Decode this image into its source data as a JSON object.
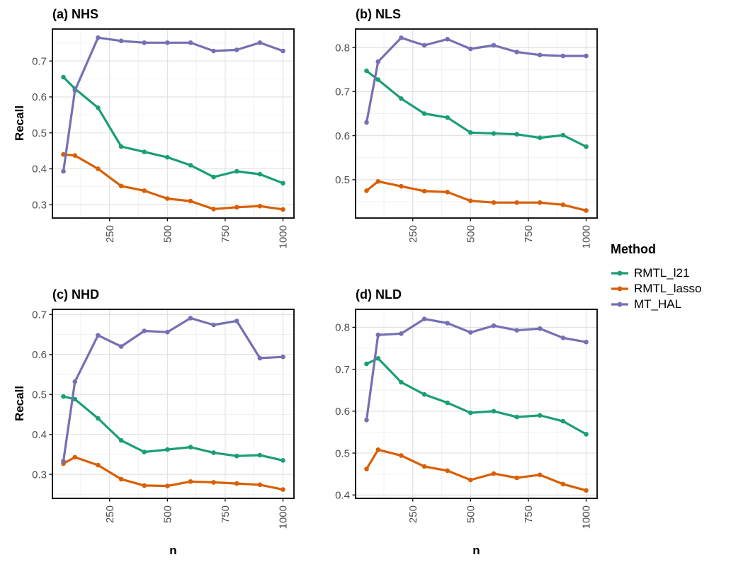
{
  "figure": {
    "y_axis_label": "Recall",
    "x_axis_label": "n",
    "tick_label_color": "#4D4D4D",
    "panel_border_color": "#1A1A1A",
    "grid_major_color": "#E2E2E2",
    "grid_minor_color": "#F0F0F0",
    "background_color": "#FFFFFF"
  },
  "legend": {
    "title": "Method",
    "items": [
      {
        "label": "RMTL_l21",
        "color": "#1B9E77"
      },
      {
        "label": "RMTL_lasso",
        "color": "#D95F02"
      },
      {
        "label": "MT_HAL",
        "color": "#7570B3"
      }
    ]
  },
  "chart_data": [
    {
      "type": "line",
      "title": "(a) NHS",
      "xlabel": "n",
      "ylabel": "Recall",
      "x": [
        50,
        100,
        200,
        300,
        400,
        500,
        600,
        700,
        800,
        900,
        1000
      ],
      "xticks": [
        250,
        500,
        750,
        1000
      ],
      "xlim": [
        2.5,
        1047.5
      ],
      "yticks": [
        0.3,
        0.4,
        0.5,
        0.6,
        0.7
      ],
      "ylim": [
        0.263,
        0.789
      ],
      "series": [
        {
          "name": "RMTL_l21",
          "color": "#1B9E77",
          "values": [
            0.655,
            0.623,
            0.57,
            0.462,
            0.447,
            0.432,
            0.41,
            0.377,
            0.393,
            0.385,
            0.36
          ]
        },
        {
          "name": "RMTL_lasso",
          "color": "#D95F02",
          "values": [
            0.44,
            0.437,
            0.4,
            0.352,
            0.339,
            0.317,
            0.31,
            0.288,
            0.293,
            0.296,
            0.287
          ]
        },
        {
          "name": "MT_HAL",
          "color": "#7570B3",
          "values": [
            0.393,
            0.618,
            0.765,
            0.756,
            0.751,
            0.751,
            0.751,
            0.728,
            0.731,
            0.751,
            0.728
          ]
        }
      ]
    },
    {
      "type": "line",
      "title": "(b) NLS",
      "xlabel": "n",
      "ylabel": "Recall",
      "x": [
        50,
        100,
        200,
        300,
        400,
        500,
        600,
        700,
        800,
        900,
        1000
      ],
      "xticks": [
        250,
        500,
        750,
        1000
      ],
      "xlim": [
        2.5,
        1047.5
      ],
      "yticks": [
        0.5,
        0.6,
        0.7,
        0.8
      ],
      "ylim": [
        0.413,
        0.842
      ],
      "series": [
        {
          "name": "RMTL_l21",
          "color": "#1B9E77",
          "values": [
            0.747,
            0.727,
            0.684,
            0.65,
            0.641,
            0.607,
            0.605,
            0.603,
            0.595,
            0.601,
            0.575
          ]
        },
        {
          "name": "RMTL_lasso",
          "color": "#D95F02",
          "values": [
            0.475,
            0.496,
            0.485,
            0.474,
            0.472,
            0.452,
            0.448,
            0.448,
            0.448,
            0.443,
            0.43
          ]
        },
        {
          "name": "MT_HAL",
          "color": "#7570B3",
          "values": [
            0.63,
            0.768,
            0.822,
            0.805,
            0.819,
            0.797,
            0.805,
            0.79,
            0.783,
            0.781,
            0.781
          ]
        }
      ]
    },
    {
      "type": "line",
      "title": "(c) NHD",
      "xlabel": "n",
      "ylabel": "Recall",
      "x": [
        50,
        100,
        200,
        300,
        400,
        500,
        600,
        700,
        800,
        900,
        1000
      ],
      "xticks": [
        250,
        500,
        750,
        1000
      ],
      "xlim": [
        2.5,
        1047.5
      ],
      "yticks": [
        0.3,
        0.4,
        0.5,
        0.6,
        0.7
      ],
      "ylim": [
        0.24,
        0.713
      ],
      "series": [
        {
          "name": "RMTL_l21",
          "color": "#1B9E77",
          "values": [
            0.495,
            0.488,
            0.44,
            0.385,
            0.356,
            0.362,
            0.368,
            0.354,
            0.346,
            0.348,
            0.335
          ]
        },
        {
          "name": "RMTL_lasso",
          "color": "#D95F02",
          "values": [
            0.327,
            0.343,
            0.323,
            0.288,
            0.272,
            0.271,
            0.282,
            0.28,
            0.277,
            0.274,
            0.262
          ]
        },
        {
          "name": "MT_HAL",
          "color": "#7570B3",
          "values": [
            0.333,
            0.532,
            0.648,
            0.62,
            0.659,
            0.656,
            0.691,
            0.674,
            0.684,
            0.591,
            0.594
          ]
        }
      ]
    },
    {
      "type": "line",
      "title": "(d) NLD",
      "xlabel": "n",
      "ylabel": "Recall",
      "x": [
        50,
        100,
        200,
        300,
        400,
        500,
        600,
        700,
        800,
        900,
        1000
      ],
      "xticks": [
        250,
        500,
        750,
        1000
      ],
      "xlim": [
        2.5,
        1047.5
      ],
      "yticks": [
        0.4,
        0.5,
        0.6,
        0.7,
        0.8
      ],
      "ylim": [
        0.392,
        0.843
      ],
      "series": [
        {
          "name": "RMTL_l21",
          "color": "#1B9E77",
          "values": [
            0.713,
            0.726,
            0.669,
            0.64,
            0.62,
            0.596,
            0.6,
            0.586,
            0.59,
            0.576,
            0.545
          ]
        },
        {
          "name": "RMTL_lasso",
          "color": "#D95F02",
          "values": [
            0.462,
            0.508,
            0.494,
            0.468,
            0.458,
            0.436,
            0.451,
            0.441,
            0.448,
            0.426,
            0.411
          ]
        },
        {
          "name": "MT_HAL",
          "color": "#7570B3",
          "values": [
            0.579,
            0.782,
            0.785,
            0.82,
            0.81,
            0.788,
            0.804,
            0.793,
            0.797,
            0.775,
            0.765
          ]
        }
      ]
    }
  ]
}
